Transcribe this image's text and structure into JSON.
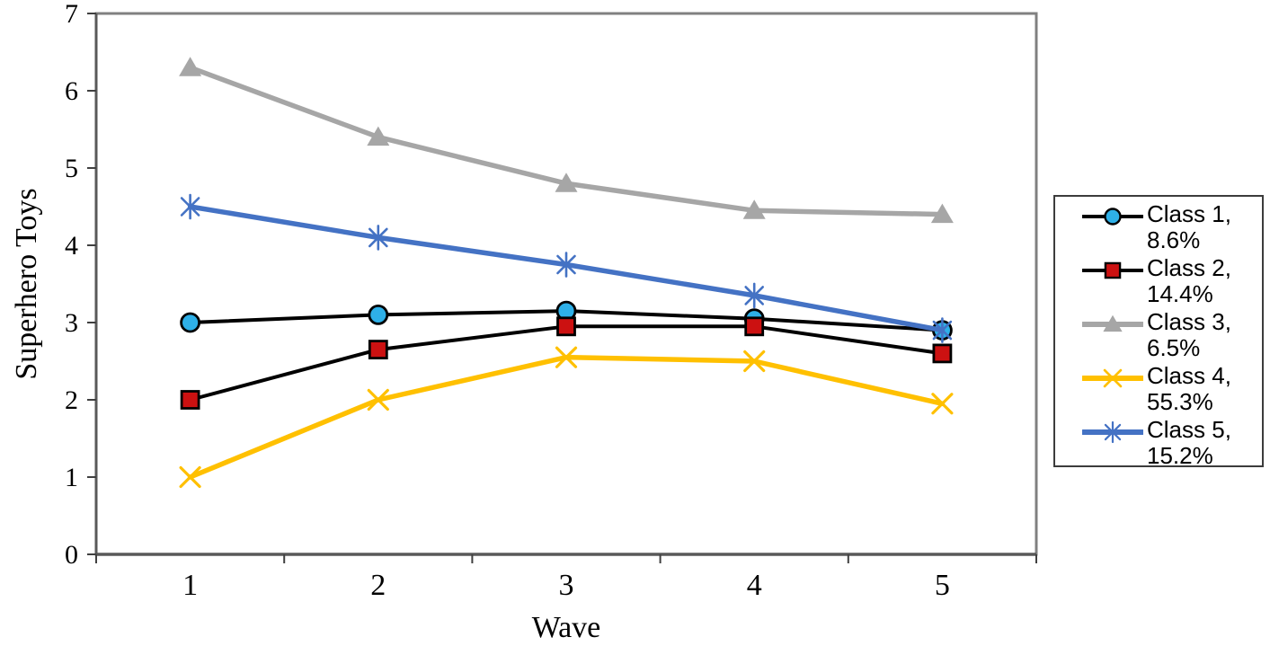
{
  "chart_data": {
    "type": "line",
    "title": "",
    "xlabel": "Wave",
    "ylabel": "Superhero Toys",
    "categories": [
      "1",
      "2",
      "3",
      "4",
      "5"
    ],
    "yticks": [
      0,
      1,
      2,
      3,
      4,
      5,
      6,
      7
    ],
    "ylim": [
      0,
      7
    ],
    "grid": false,
    "legend_position": "right",
    "series": [
      {
        "name": "Class 1, 8.6%",
        "legend_lines": [
          "Class 1,",
          "8.6%"
        ],
        "values": [
          3.0,
          3.1,
          3.15,
          3.05,
          2.9
        ],
        "line_color": "#000000",
        "marker": "circle",
        "marker_color": "#2EB0E8"
      },
      {
        "name": "Class 2, 14.4%",
        "legend_lines": [
          "Class 2,",
          "14.4%"
        ],
        "values": [
          2.0,
          2.65,
          2.95,
          2.95,
          2.6
        ],
        "line_color": "#000000",
        "marker": "square",
        "marker_color": "#CC1111"
      },
      {
        "name": "Class 3, 6.5%",
        "legend_lines": [
          "Class 3,",
          "6.5%"
        ],
        "values": [
          6.3,
          5.4,
          4.8,
          4.45,
          4.4
        ],
        "line_color": "#A6A6A6",
        "marker": "triangle",
        "marker_color": "#A6A6A6"
      },
      {
        "name": "Class 4, 55.3%",
        "legend_lines": [
          "Class 4,",
          "55.3%"
        ],
        "values": [
          1.0,
          2.0,
          2.55,
          2.5,
          1.95
        ],
        "line_color": "#FFC000",
        "marker": "x",
        "marker_color": "#FFC000"
      },
      {
        "name": "Class 5, 15.2%",
        "legend_lines": [
          "Class 5,",
          "15.2%"
        ],
        "values": [
          4.5,
          4.1,
          3.75,
          3.35,
          2.9
        ],
        "line_color": "#4472C4",
        "marker": "asterisk",
        "marker_color": "#4472C4"
      }
    ]
  }
}
